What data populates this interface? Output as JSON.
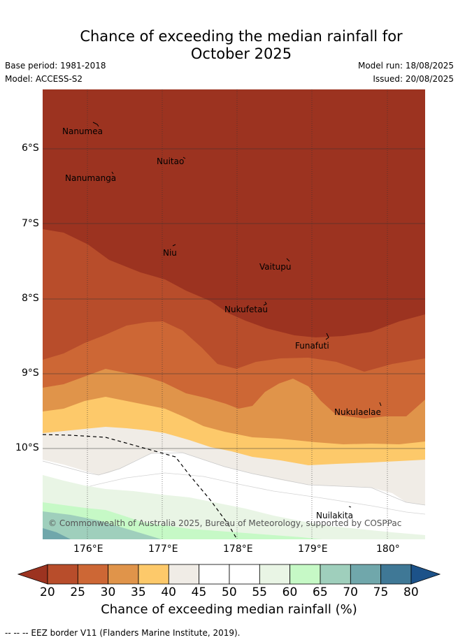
{
  "title_line1": "Chance of exceeding the median rainfall for",
  "title_line2": "October 2025",
  "base_period": "Base period: 1981-2018",
  "model": "Model: ACCESS-S2",
  "model_run": "Model run: 18/08/2025",
  "issued": "Issued: 20/08/2025",
  "lat_labels": [
    "6°S",
    "7°S",
    "8°S",
    "9°S",
    "10°S"
  ],
  "lon_labels": [
    "176°E",
    "177°E",
    "178°E",
    "179°E",
    "180°"
  ],
  "places": {
    "nanumea": "Nanumea",
    "nuitao": "Nuitao",
    "nanumanga": "Nanumanga",
    "niu": "Niu",
    "vaitupu": "Vaitupu",
    "nukufetau": "Nukufetau",
    "funafuti": "Funafuti",
    "nukulaelae": "Nukulaelae",
    "nuilakita": "Nuilakita"
  },
  "copyright": "© Commonwealth of Australia 2025, Bureau of Meteorology, supported by COSPPac",
  "colorbar": {
    "ticks": [
      "20",
      "25",
      "30",
      "35",
      "40",
      "45",
      "50",
      "55",
      "60",
      "65",
      "70",
      "75",
      "80"
    ],
    "colors": [
      "#9c3320",
      "#b84d2b",
      "#cd6735",
      "#e0944a",
      "#fdc96a",
      "#f0ece6",
      "#ffffff",
      "#ffffff",
      "#e9f5e5",
      "#c6f9c6",
      "#9fcfbc",
      "#70a7ab",
      "#3f7896",
      "#1c5289"
    ],
    "title": "Chance of exceeding median rainfall (%)"
  },
  "eez_note": "--  --  -- EEZ border V11 (Flanders Marine Institute, 2019)."
}
